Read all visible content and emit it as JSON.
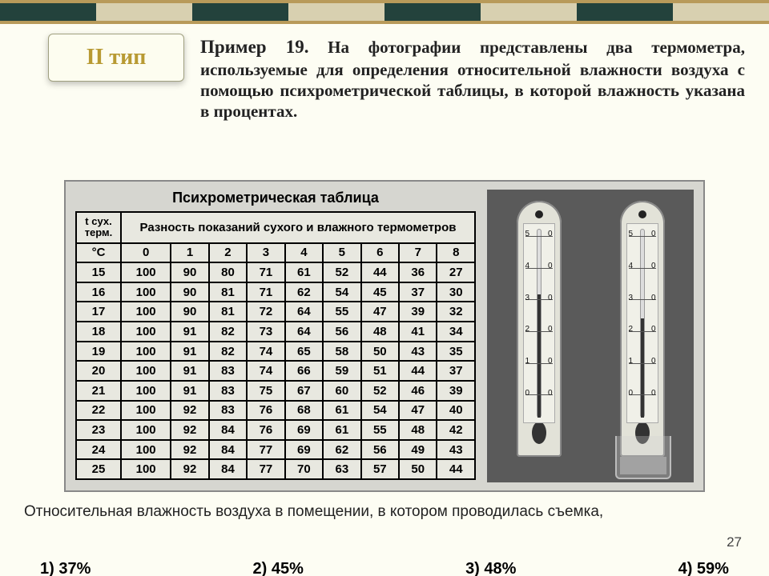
{
  "badge": {
    "label": "II тип"
  },
  "problem": {
    "lead": "Пример 19.",
    "body": "На фотографии представлены два термометра, используемые для определения относительной влажности воздуха с помощью психрометрической таблицы, в которой влажность указана в процентах."
  },
  "table": {
    "title": "Психрометрическая таблица",
    "row_label_top": "t сух. терм.",
    "row_label_unit": "°C",
    "spanner": "Разность показаний сухого и влажного термометров",
    "diff_cols": [
      "0",
      "1",
      "2",
      "3",
      "4",
      "5",
      "6",
      "7",
      "8"
    ],
    "rows": [
      {
        "t": "15",
        "v": [
          "100",
          "90",
          "80",
          "71",
          "61",
          "52",
          "44",
          "36",
          "27"
        ]
      },
      {
        "t": "16",
        "v": [
          "100",
          "90",
          "81",
          "71",
          "62",
          "54",
          "45",
          "37",
          "30"
        ]
      },
      {
        "t": "17",
        "v": [
          "100",
          "90",
          "81",
          "72",
          "64",
          "55",
          "47",
          "39",
          "32"
        ]
      },
      {
        "t": "18",
        "v": [
          "100",
          "91",
          "82",
          "73",
          "64",
          "56",
          "48",
          "41",
          "34"
        ]
      },
      {
        "t": "19",
        "v": [
          "100",
          "91",
          "82",
          "74",
          "65",
          "58",
          "50",
          "43",
          "35"
        ]
      },
      {
        "t": "20",
        "v": [
          "100",
          "91",
          "83",
          "74",
          "66",
          "59",
          "51",
          "44",
          "37"
        ]
      },
      {
        "t": "21",
        "v": [
          "100",
          "91",
          "83",
          "75",
          "67",
          "60",
          "52",
          "46",
          "39"
        ]
      },
      {
        "t": "22",
        "v": [
          "100",
          "92",
          "83",
          "76",
          "68",
          "61",
          "54",
          "47",
          "40"
        ]
      },
      {
        "t": "23",
        "v": [
          "100",
          "92",
          "84",
          "76",
          "69",
          "61",
          "55",
          "48",
          "42"
        ]
      },
      {
        "t": "24",
        "v": [
          "100",
          "92",
          "84",
          "77",
          "69",
          "62",
          "56",
          "49",
          "43"
        ]
      },
      {
        "t": "25",
        "v": [
          "100",
          "92",
          "84",
          "77",
          "70",
          "63",
          "57",
          "50",
          "44"
        ]
      }
    ]
  },
  "thermometers": {
    "scale_marks": [
      "5",
      "4",
      "3",
      "2",
      "1",
      "0"
    ],
    "dry_height_pct": 62,
    "wet_height_pct": 50
  },
  "question": "Относительная влажность воздуха в помещении, в котором проводилась съемка,",
  "slide_number": "27",
  "answers": [
    "1) 37%",
    "2) 45%",
    "3) 48%",
    "4) 59%"
  ],
  "colors": {
    "background": "#fdfdf3",
    "stripe_dark": "#23423c",
    "stripe_light": "#d8d0b0",
    "stripe_border": "#b89a5a",
    "badge_text": "#b89a33"
  }
}
